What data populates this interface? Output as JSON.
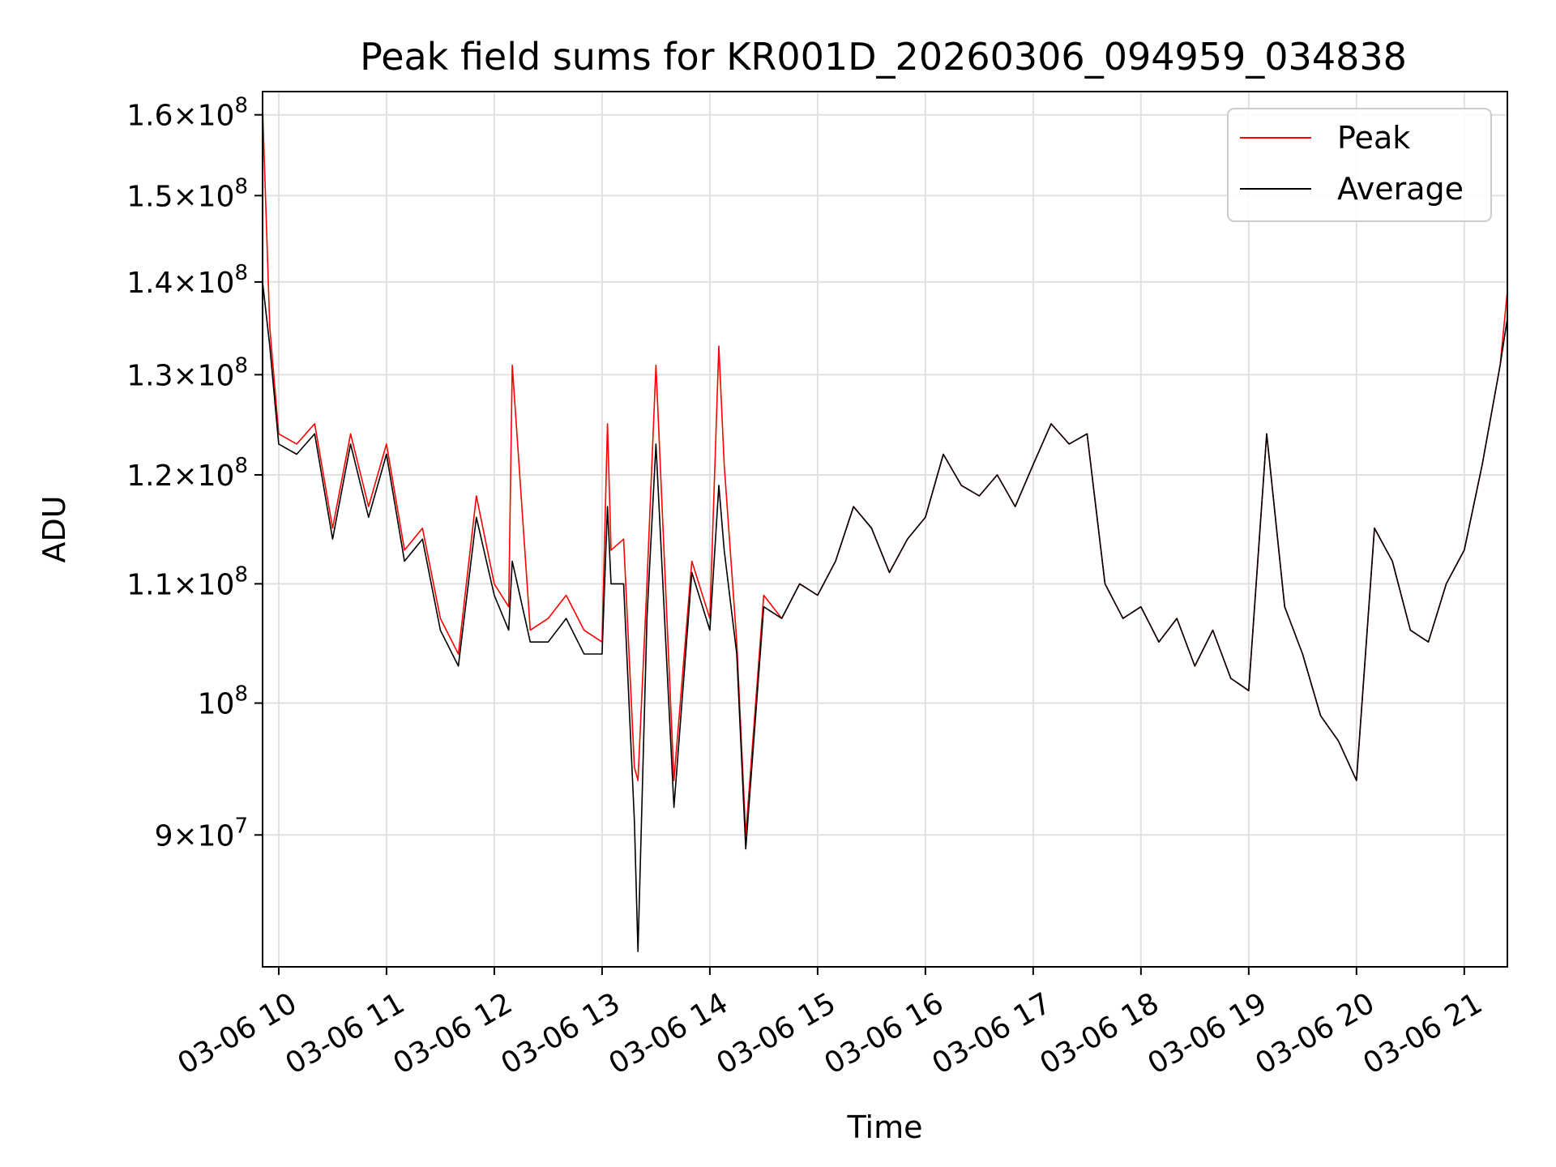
{
  "chart_data": {
    "type": "line",
    "title": "Peak field sums for KR001D_20260306_094959_034838",
    "xlabel": "Time",
    "ylabel": "ADU",
    "y_scale": "log",
    "ylim": [
      81000000,
      163000000
    ],
    "xlim": [
      "2026-03-06 09:51",
      "2026-03-06 21:24"
    ],
    "grid": true,
    "legend_position": "top-right",
    "x_ticks": [
      "03-06 10",
      "03-06 11",
      "03-06 12",
      "03-06 13",
      "03-06 14",
      "03-06 15",
      "03-06 16",
      "03-06 17",
      "03-06 18",
      "03-06 19",
      "03-06 20",
      "03-06 21"
    ],
    "y_ticks": [
      {
        "value": 90000000,
        "mantissa": "9",
        "exponent": "7"
      },
      {
        "value": 100000000,
        "mantissa": "",
        "exponent": "8"
      },
      {
        "value": 110000000,
        "mantissa": "1.1",
        "exponent": "8"
      },
      {
        "value": 120000000,
        "mantissa": "1.2",
        "exponent": "8"
      },
      {
        "value": 130000000,
        "mantissa": "1.3",
        "exponent": "8"
      },
      {
        "value": 140000000,
        "mantissa": "1.4",
        "exponent": "8"
      },
      {
        "value": 150000000,
        "mantissa": "1.5",
        "exponent": "8"
      },
      {
        "value": 160000000,
        "mantissa": "1.6",
        "exponent": "8"
      }
    ],
    "series": [
      {
        "name": "Peak",
        "color": "#ff0000",
        "x": [
          "2026-03-06 09:51",
          "2026-03-06 09:55",
          "2026-03-06 10:00",
          "2026-03-06 10:10",
          "2026-03-06 10:20",
          "2026-03-06 10:30",
          "2026-03-06 10:40",
          "2026-03-06 10:50",
          "2026-03-06 11:00",
          "2026-03-06 11:10",
          "2026-03-06 11:20",
          "2026-03-06 11:30",
          "2026-03-06 11:40",
          "2026-03-06 11:50",
          "2026-03-06 12:00",
          "2026-03-06 12:08",
          "2026-03-06 12:10",
          "2026-03-06 12:20",
          "2026-03-06 12:30",
          "2026-03-06 12:40",
          "2026-03-06 12:50",
          "2026-03-06 13:00",
          "2026-03-06 13:03",
          "2026-03-06 13:05",
          "2026-03-06 13:12",
          "2026-03-06 13:18",
          "2026-03-06 13:20",
          "2026-03-06 13:25",
          "2026-03-06 13:30",
          "2026-03-06 13:40",
          "2026-03-06 13:50",
          "2026-03-06 14:00",
          "2026-03-06 14:05",
          "2026-03-06 14:08",
          "2026-03-06 14:15",
          "2026-03-06 14:20",
          "2026-03-06 14:30",
          "2026-03-06 14:40",
          "2026-03-06 14:50",
          "2026-03-06 15:00",
          "2026-03-06 15:10",
          "2026-03-06 15:20",
          "2026-03-06 15:30",
          "2026-03-06 15:40",
          "2026-03-06 15:50",
          "2026-03-06 16:00",
          "2026-03-06 16:10",
          "2026-03-06 16:20",
          "2026-03-06 16:30",
          "2026-03-06 16:40",
          "2026-03-06 16:50",
          "2026-03-06 17:00",
          "2026-03-06 17:10",
          "2026-03-06 17:20",
          "2026-03-06 17:30",
          "2026-03-06 17:40",
          "2026-03-06 17:50",
          "2026-03-06 18:00",
          "2026-03-06 18:10",
          "2026-03-06 18:20",
          "2026-03-06 18:30",
          "2026-03-06 18:40",
          "2026-03-06 18:50",
          "2026-03-06 19:00",
          "2026-03-06 19:10",
          "2026-03-06 19:20",
          "2026-03-06 19:30",
          "2026-03-06 19:40",
          "2026-03-06 19:50",
          "2026-03-06 20:00",
          "2026-03-06 20:10",
          "2026-03-06 20:20",
          "2026-03-06 20:30",
          "2026-03-06 20:40",
          "2026-03-06 20:50",
          "2026-03-06 21:00",
          "2026-03-06 21:10",
          "2026-03-06 21:20",
          "2026-03-06 21:24"
        ],
        "y": [
          161000000,
          135000000,
          124000000,
          123000000,
          125000000,
          115000000,
          124000000,
          117000000,
          123000000,
          113000000,
          115000000,
          107000000,
          104000000,
          118000000,
          110000000,
          108000000,
          131000000,
          106000000,
          107000000,
          109000000,
          106000000,
          105000000,
          125000000,
          113000000,
          114000000,
          95000000,
          94000000,
          110000000,
          131000000,
          94000000,
          112000000,
          107000000,
          133000000,
          121000000,
          105000000,
          90000000,
          109000000,
          107000000,
          110000000,
          109000000,
          112000000,
          117000000,
          115000000,
          111000000,
          114000000,
          116000000,
          122000000,
          119000000,
          118000000,
          120000000,
          117000000,
          121000000,
          125000000,
          123000000,
          124000000,
          110000000,
          107000000,
          108000000,
          105000000,
          107000000,
          103000000,
          106000000,
          102000000,
          101000000,
          124000000,
          108000000,
          104000000,
          99000000,
          97000000,
          94000000,
          115000000,
          112000000,
          106000000,
          105000000,
          110000000,
          113000000,
          121000000,
          131000000,
          139000000
        ]
      },
      {
        "name": "Average",
        "color": "#000000",
        "x": [
          "2026-03-06 09:51",
          "2026-03-06 09:55",
          "2026-03-06 10:00",
          "2026-03-06 10:10",
          "2026-03-06 10:20",
          "2026-03-06 10:30",
          "2026-03-06 10:40",
          "2026-03-06 10:50",
          "2026-03-06 11:00",
          "2026-03-06 11:10",
          "2026-03-06 11:20",
          "2026-03-06 11:30",
          "2026-03-06 11:40",
          "2026-03-06 11:50",
          "2026-03-06 12:00",
          "2026-03-06 12:08",
          "2026-03-06 12:10",
          "2026-03-06 12:20",
          "2026-03-06 12:30",
          "2026-03-06 12:40",
          "2026-03-06 12:50",
          "2026-03-06 13:00",
          "2026-03-06 13:03",
          "2026-03-06 13:05",
          "2026-03-06 13:12",
          "2026-03-06 13:18",
          "2026-03-06 13:20",
          "2026-03-06 13:25",
          "2026-03-06 13:30",
          "2026-03-06 13:40",
          "2026-03-06 13:50",
          "2026-03-06 14:00",
          "2026-03-06 14:05",
          "2026-03-06 14:08",
          "2026-03-06 14:15",
          "2026-03-06 14:20",
          "2026-03-06 14:30",
          "2026-03-06 14:40",
          "2026-03-06 14:50",
          "2026-03-06 15:00",
          "2026-03-06 15:10",
          "2026-03-06 15:20",
          "2026-03-06 15:30",
          "2026-03-06 15:40",
          "2026-03-06 15:50",
          "2026-03-06 16:00",
          "2026-03-06 16:10",
          "2026-03-06 16:20",
          "2026-03-06 16:30",
          "2026-03-06 16:40",
          "2026-03-06 16:50",
          "2026-03-06 17:00",
          "2026-03-06 17:10",
          "2026-03-06 17:20",
          "2026-03-06 17:30",
          "2026-03-06 17:40",
          "2026-03-06 17:50",
          "2026-03-06 18:00",
          "2026-03-06 18:10",
          "2026-03-06 18:20",
          "2026-03-06 18:30",
          "2026-03-06 18:40",
          "2026-03-06 18:50",
          "2026-03-06 19:00",
          "2026-03-06 19:10",
          "2026-03-06 19:20",
          "2026-03-06 19:30",
          "2026-03-06 19:40",
          "2026-03-06 19:50",
          "2026-03-06 20:00",
          "2026-03-06 20:10",
          "2026-03-06 20:20",
          "2026-03-06 20:30",
          "2026-03-06 20:40",
          "2026-03-06 20:50",
          "2026-03-06 21:00",
          "2026-03-06 21:10",
          "2026-03-06 21:20",
          "2026-03-06 21:24"
        ],
        "y": [
          140000000,
          133000000,
          123000000,
          122000000,
          124000000,
          114000000,
          123000000,
          116000000,
          122000000,
          112000000,
          114000000,
          106000000,
          103000000,
          116000000,
          109000000,
          106000000,
          112000000,
          105000000,
          105000000,
          107000000,
          104000000,
          104000000,
          117000000,
          110000000,
          110000000,
          91000000,
          82000000,
          107000000,
          123000000,
          92000000,
          111000000,
          106000000,
          119000000,
          113000000,
          104000000,
          89000000,
          108000000,
          107000000,
          110000000,
          109000000,
          112000000,
          117000000,
          115000000,
          111000000,
          114000000,
          116000000,
          122000000,
          119000000,
          118000000,
          120000000,
          117000000,
          121000000,
          125000000,
          123000000,
          124000000,
          110000000,
          107000000,
          108000000,
          105000000,
          107000000,
          103000000,
          106000000,
          102000000,
          101000000,
          124000000,
          108000000,
          104000000,
          99000000,
          97000000,
          94000000,
          115000000,
          112000000,
          106000000,
          105000000,
          110000000,
          113000000,
          121000000,
          131000000,
          136000000
        ]
      }
    ]
  }
}
